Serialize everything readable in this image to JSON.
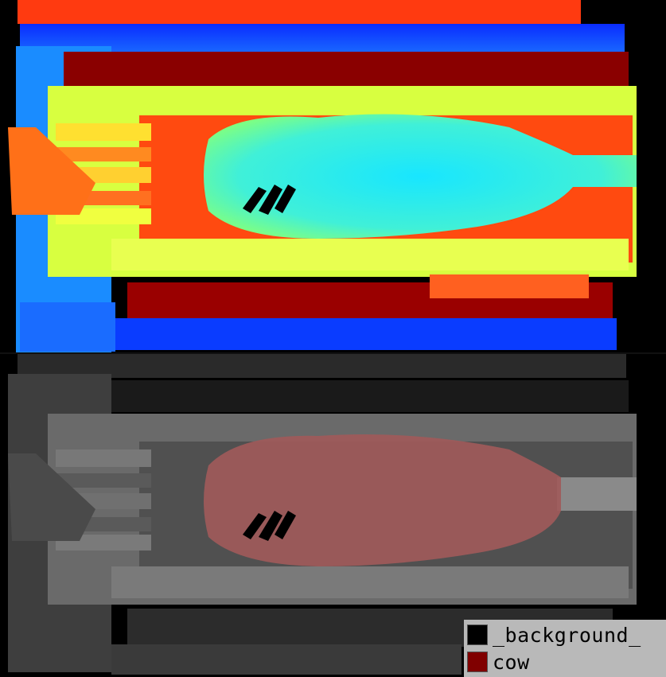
{
  "legend": {
    "items": [
      {
        "label": "_background_",
        "color": "#000000"
      },
      {
        "label": "cow",
        "color": "#800000"
      }
    ]
  },
  "palette": {
    "depth_far": "#0030ff",
    "depth_mid": "#00e5ff",
    "depth_near": "#ffff40",
    "depth_closest": "#a00000",
    "cow_overlay": "#800000"
  }
}
